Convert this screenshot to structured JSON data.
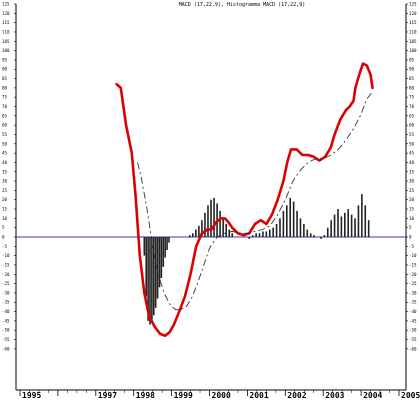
{
  "chart_data": {
    "type": "line",
    "title": "MACD (17,22,9), Histogramma MACD (17,22,9)",
    "xlabel": "",
    "ylabel": "",
    "xlim": [
      1995.0,
      2005.0
    ],
    "ylim": [
      -63,
      127
    ],
    "y_ticks": [
      125,
      120,
      115,
      110,
      105,
      100,
      95,
      90,
      85,
      80,
      75,
      70,
      65,
      60,
      55,
      50,
      45,
      40,
      35,
      30,
      25,
      20,
      15,
      10,
      5,
      0,
      -5,
      -10,
      -15,
      -20,
      -25,
      -30,
      -35,
      -40,
      -45,
      -50,
      -55,
      -60
    ],
    "x_ticks": [
      {
        "label": "1995",
        "value": 1995.0
      },
      {
        "label": "1997",
        "value": 1997.0
      },
      {
        "label": "1998",
        "value": 1998.0
      },
      {
        "label": "1999",
        "value": 1999.0
      },
      {
        "label": "2000",
        "value": 2000.0
      },
      {
        "label": "2001",
        "value": 2001.0
      },
      {
        "label": "2002",
        "value": 2002.0
      },
      {
        "label": "2003",
        "value": 2003.0
      },
      {
        "label": "2004",
        "value": 2004.0
      },
      {
        "label": "2005",
        "value": 2005.0
      }
    ],
    "zero_line": 0,
    "grid": false,
    "colors": {
      "macd": "#dd0000",
      "signal": "#333333",
      "histogram": "#222222",
      "zero": "#3333bb",
      "axis": "#000000"
    },
    "series": [
      {
        "style": "solid",
        "x": [
          1997.55,
          1997.66,
          1997.8,
          1997.95,
          1998.05,
          1998.16,
          1998.28,
          1998.4,
          1998.55,
          1998.7,
          1998.83,
          1998.95,
          1999.06,
          1999.2,
          1999.35,
          1999.5,
          1999.65,
          1999.8,
          1999.95,
          2000.05,
          2000.18,
          2000.3,
          2000.41,
          2000.5,
          2000.6,
          2000.75,
          2000.9,
          2001.05,
          2001.2,
          2001.35,
          2001.5,
          2001.65,
          2001.8,
          2001.95,
          2002.05,
          2002.15,
          2002.3,
          2002.45,
          2002.6,
          2002.75,
          2002.9,
          2003.05,
          2003.2,
          2003.3,
          2003.45,
          2003.6,
          2003.7,
          2003.8,
          2003.85,
          2003.95,
          2004.05,
          2004.15,
          2004.25,
          2004.3
        ],
        "y": [
          82,
          80,
          60,
          45,
          22,
          -10,
          -30,
          -42,
          -48,
          -52,
          -53,
          -51,
          -47,
          -40,
          -32,
          -20,
          -5,
          2,
          4,
          4,
          8,
          10,
          10,
          8,
          5,
          2,
          1,
          2,
          7,
          9,
          7,
          12,
          20,
          30,
          40,
          47,
          47,
          44,
          44,
          43,
          41,
          43,
          48,
          55,
          63,
          68,
          70,
          73,
          80,
          87,
          93,
          92,
          87,
          80
        ]
      },
      {
        "style": "dashed",
        "x": [
          1998.1,
          1998.2,
          1998.35,
          1998.5,
          1998.65,
          1998.8,
          1998.95,
          1999.1,
          1999.25,
          1999.4,
          1999.55,
          1999.7,
          1999.85,
          2000.0,
          2000.2,
          2000.4,
          2000.6,
          2000.8,
          2001.0,
          2001.2,
          2001.4,
          2001.6,
          2001.8,
          2002.0,
          2002.2,
          2002.4,
          2002.6,
          2002.8,
          2003.0,
          2003.2,
          2003.4,
          2003.6,
          2003.8,
          2004.0,
          2004.15,
          2004.3
        ],
        "y": [
          40,
          32,
          15,
          -5,
          -20,
          -30,
          -36,
          -39,
          -39,
          -37,
          -32,
          -24,
          -15,
          -6,
          0,
          2,
          3,
          2,
          2,
          3,
          4,
          6,
          12,
          20,
          30,
          36,
          40,
          42,
          42,
          44,
          47,
          52,
          58,
          66,
          74,
          78
        ]
      }
    ],
    "histogram": {
      "x": [
        1998.28,
        1998.33,
        1998.38,
        1998.43,
        1998.48,
        1998.53,
        1998.58,
        1998.63,
        1998.68,
        1998.73,
        1998.78,
        1998.83,
        1998.88,
        1998.93,
        1999.48,
        1999.56,
        1999.64,
        1999.72,
        1999.8,
        1999.88,
        1999.96,
        2000.04,
        2000.12,
        2000.2,
        2000.28,
        2000.36,
        2000.44,
        2000.52,
        2000.6,
        2001.05,
        2001.14,
        2001.23,
        2001.32,
        2001.41,
        2001.5,
        2001.59,
        2001.68,
        2001.77,
        2001.86,
        2001.95,
        2002.04,
        2002.13,
        2002.22,
        2002.31,
        2002.4,
        2002.49,
        2002.58,
        2002.67,
        2002.76,
        2002.85,
        2002.94,
        2003.03,
        2003.12,
        2003.21,
        2003.3,
        2003.39,
        2003.48,
        2003.57,
        2003.66,
        2003.75,
        2003.84,
        2003.93,
        2004.02,
        2004.11,
        2004.2
      ],
      "values": [
        -10,
        -32,
        -45,
        -47,
        -46,
        -42,
        -38,
        -33,
        -27,
        -22,
        -16,
        -11,
        -7,
        -3,
        1,
        2,
        4,
        6,
        9,
        13,
        17,
        20,
        21,
        18,
        14,
        10,
        7,
        4,
        2,
        -1,
        1,
        2,
        2,
        3,
        3,
        4,
        5,
        7,
        10,
        14,
        17,
        21,
        19,
        14,
        10,
        7,
        4,
        2,
        1,
        0,
        -1,
        1,
        5,
        9,
        12,
        15,
        11,
        13,
        15,
        12,
        10,
        17,
        23,
        17,
        9
      ]
    }
  }
}
